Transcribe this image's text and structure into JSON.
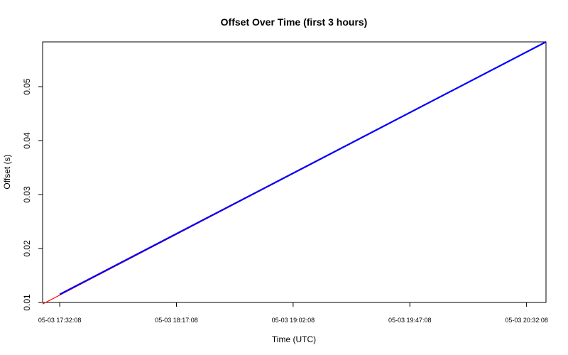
{
  "chart_data": {
    "type": "line",
    "title": "Offset Over Time (first 3 hours)",
    "xlabel": "Time (UTC)",
    "ylabel": "Offset (s)",
    "x_ticks": [
      "05-03 17:32:08",
      "05-03 18:17:08",
      "05-03 19:02:08",
      "05-03 19:47:08",
      "05-03 20:32:08"
    ],
    "x_tick_minutes": [
      0,
      45,
      90,
      135,
      180
    ],
    "xlim_minutes": [
      -6.6,
      187.5
    ],
    "y_ticks": [
      "0.01",
      "0.02",
      "0.03",
      "0.04",
      "0.05"
    ],
    "ylim": [
      0.01,
      0.0583
    ],
    "grid": false,
    "legend": "none",
    "series": [
      {
        "color": "#0000ff",
        "x_minutes": [
          0,
          187.5
        ],
        "y": [
          0.0115,
          0.0583
        ]
      },
      {
        "color": "#ff0000",
        "x_minutes": [
          -6.6,
          187.5
        ],
        "y": [
          0.0097,
          0.0583
        ]
      }
    ]
  }
}
